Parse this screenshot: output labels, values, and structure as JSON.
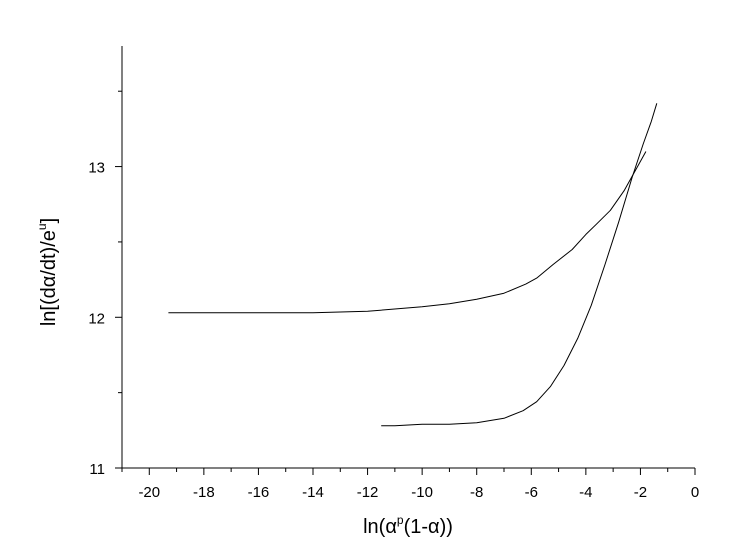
{
  "chart_data": {
    "type": "line",
    "title": "",
    "xlabel": "ln(α",
    "xlabel_sup": "p",
    "xlabel_tail": "(1-α))",
    "ylabel": "ln[(dα/dt)/e",
    "ylabel_sup": "u",
    "ylabel_tail": "]",
    "xlim": [
      -21,
      0
    ],
    "ylim": [
      11,
      13.8
    ],
    "grid": false,
    "legend": "none",
    "line_color": "#000000",
    "x_ticks": [
      -20,
      -18,
      -16,
      -14,
      -12,
      -10,
      -8,
      -6,
      -4,
      -2,
      0
    ],
    "y_ticks": [
      11,
      12,
      13
    ],
    "series": [
      {
        "name": "",
        "x": [
          -19.3,
          -18,
          -16,
          -14,
          -12,
          -10,
          -9,
          -8,
          -7,
          -6.2,
          -5.8,
          -5.2,
          -4.5,
          -4.0,
          -3.6,
          -3.1,
          -2.6,
          -2.2,
          -1.8
        ],
        "y": [
          12.03,
          12.03,
          12.03,
          12.03,
          12.04,
          12.07,
          12.09,
          12.12,
          12.16,
          12.22,
          12.26,
          12.35,
          12.45,
          12.55,
          12.62,
          12.71,
          12.84,
          12.97,
          13.1
        ]
      },
      {
        "name": "",
        "x": [
          -11.5,
          -11,
          -10,
          -9,
          -8,
          -7,
          -6.3,
          -5.8,
          -5.3,
          -4.8,
          -4.3,
          -3.8,
          -3.3,
          -2.8,
          -2.3,
          -1.9,
          -1.6,
          -1.4
        ],
        "y": [
          11.28,
          11.28,
          11.29,
          11.29,
          11.3,
          11.33,
          11.38,
          11.44,
          11.54,
          11.68,
          11.86,
          12.08,
          12.35,
          12.63,
          12.93,
          13.15,
          13.3,
          13.42
        ]
      }
    ]
  }
}
